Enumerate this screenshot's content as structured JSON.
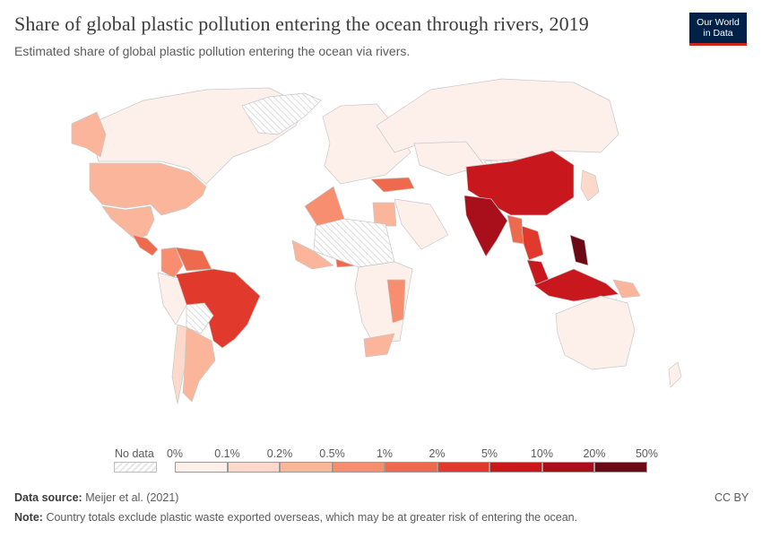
{
  "header": {
    "title": "Share of global plastic pollution entering the ocean through rivers, 2019",
    "subtitle": "Estimated share of global plastic pollution entering the ocean via rivers."
  },
  "logo": {
    "line1": "Our World",
    "line2": "in Data"
  },
  "legend": {
    "no_data_label": "No data",
    "ticks": [
      "0%",
      "0.1%",
      "0.2%",
      "0.5%",
      "1%",
      "2%",
      "5%",
      "10%",
      "20%",
      "50%"
    ],
    "bin_colors": [
      "#fdf0eb",
      "#fcd9cb",
      "#fbb59b",
      "#f68e6f",
      "#ee6a4c",
      "#e1392c",
      "#c8181d",
      "#a80f1b",
      "#6b0a14"
    ]
  },
  "chart_data": {
    "type": "choropleth",
    "title": "Share of global plastic pollution entering the ocean through rivers, 2019",
    "year": 2019,
    "unit": "%",
    "bins": [
      [
        0,
        0.1
      ],
      [
        0.1,
        0.2
      ],
      [
        0.2,
        0.5
      ],
      [
        0.5,
        1
      ],
      [
        1,
        2
      ],
      [
        2,
        5
      ],
      [
        5,
        10
      ],
      [
        10,
        20
      ],
      [
        20,
        50
      ]
    ],
    "regions": [
      {
        "name": "Canada",
        "bin": 0
      },
      {
        "name": "Alaska",
        "bin": 2
      },
      {
        "name": "Greenland",
        "bin": null
      },
      {
        "name": "United States",
        "bin": 2
      },
      {
        "name": "Mexico",
        "bin": 2
      },
      {
        "name": "Central America",
        "bin": 4
      },
      {
        "name": "Venezuela",
        "bin": 4
      },
      {
        "name": "Colombia",
        "bin": 3
      },
      {
        "name": "Brazil",
        "bin": 5
      },
      {
        "name": "Peru",
        "bin": 0
      },
      {
        "name": "Bolivia",
        "bin": null
      },
      {
        "name": "Argentina",
        "bin": 2
      },
      {
        "name": "Chile",
        "bin": 1
      },
      {
        "name": "Europe",
        "bin": 0
      },
      {
        "name": "Russia",
        "bin": 0
      },
      {
        "name": "Turkey",
        "bin": 4
      },
      {
        "name": "Algeria",
        "bin": 3
      },
      {
        "name": "Egypt",
        "bin": 2
      },
      {
        "name": "Nigeria",
        "bin": 4
      },
      {
        "name": "West Africa",
        "bin": 2
      },
      {
        "name": "Central Sahara",
        "bin": null
      },
      {
        "name": "East Africa",
        "bin": 0
      },
      {
        "name": "Tanzania/Mozambique",
        "bin": 3
      },
      {
        "name": "South Africa",
        "bin": 2
      },
      {
        "name": "Arabia",
        "bin": 0
      },
      {
        "name": "Kazakhstan",
        "bin": 0
      },
      {
        "name": "Mongolia",
        "bin": null
      },
      {
        "name": "China",
        "bin": 6
      },
      {
        "name": "India",
        "bin": 7
      },
      {
        "name": "Myanmar",
        "bin": 4
      },
      {
        "name": "Thailand",
        "bin": 5
      },
      {
        "name": "Malaysia",
        "bin": 6
      },
      {
        "name": "Indonesia",
        "bin": 6
      },
      {
        "name": "Philippines",
        "bin": 8
      },
      {
        "name": "Japan",
        "bin": 1
      },
      {
        "name": "Papua New Guinea",
        "bin": 2
      },
      {
        "name": "Australia",
        "bin": 0
      },
      {
        "name": "New Zealand",
        "bin": 0
      }
    ]
  },
  "footer": {
    "source_label": "Data source:",
    "source_text": "Meijer et al. (2021)",
    "note_label": "Note:",
    "note_text": "Country totals exclude plastic waste exported overseas, which may be at greater risk of entering the ocean.",
    "license": "CC BY"
  }
}
